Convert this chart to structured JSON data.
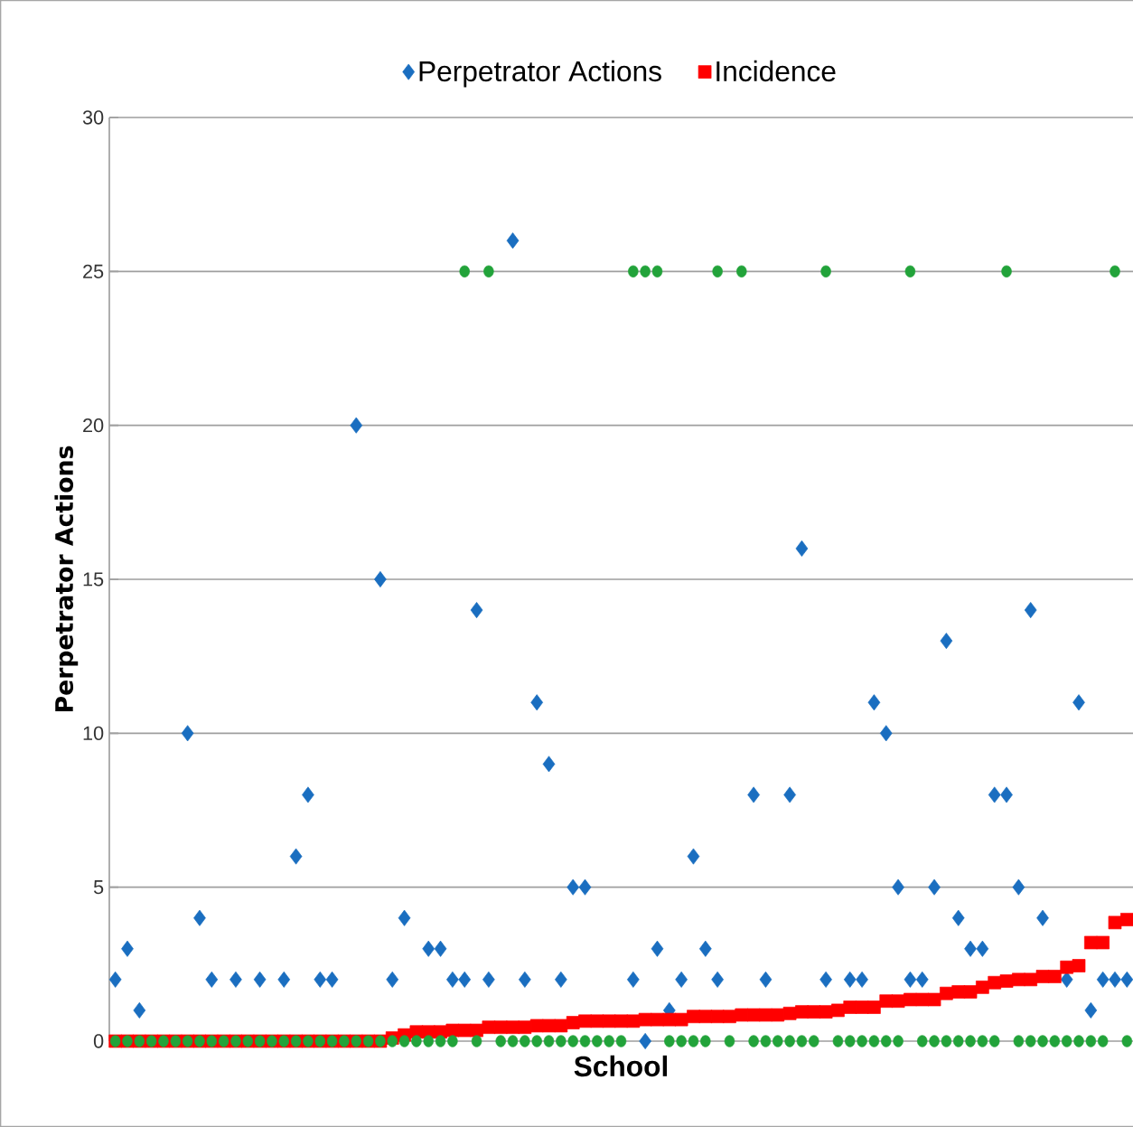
{
  "chart_data": {
    "type": "scatter",
    "xlabel": "School",
    "ylabel": "Perpetrator Actions",
    "categories": [
      null,
      null,
      null,
      null,
      null,
      null,
      null,
      null,
      null,
      null,
      null,
      null,
      null,
      null,
      null,
      null,
      null,
      null,
      null,
      null,
      null,
      null,
      null,
      null,
      null,
      null,
      null,
      null,
      null,
      null,
      null,
      null,
      null,
      null,
      null,
      null,
      null,
      null,
      null,
      null,
      null,
      null,
      null,
      null,
      null,
      null,
      null,
      null,
      null,
      null,
      null,
      null,
      null,
      null,
      null,
      null,
      null,
      null,
      null,
      null,
      null,
      null,
      null,
      null,
      null,
      null,
      null,
      null,
      null,
      null,
      null,
      null,
      null,
      null,
      null,
      null,
      null,
      null,
      null,
      null,
      null,
      null,
      null,
      null,
      null
    ],
    "ylim": [
      0,
      30
    ],
    "yticks": [
      0,
      5,
      10,
      15,
      20,
      25,
      30
    ],
    "grid": "y",
    "legend": "top",
    "series": [
      {
        "name": "Perpetrator Actions",
        "color": "#1a6ec0",
        "marker": "diamond",
        "values": [
          2,
          3,
          1,
          null,
          null,
          null,
          10,
          4,
          2,
          null,
          2,
          null,
          2,
          null,
          2,
          6,
          8,
          2,
          2,
          null,
          20,
          null,
          15,
          2,
          4,
          null,
          3,
          3,
          2,
          2,
          14,
          2,
          null,
          26,
          2,
          11,
          9,
          2,
          5,
          5,
          null,
          null,
          null,
          2,
          0,
          3,
          1,
          2,
          6,
          3,
          2,
          null,
          null,
          8,
          2,
          null,
          8,
          16,
          null,
          2,
          null,
          2,
          2,
          11,
          10,
          5,
          2,
          2,
          5,
          13,
          4,
          3,
          3,
          8,
          8,
          5,
          14,
          4,
          null,
          2,
          11,
          1,
          2,
          2,
          2
        ]
      },
      {
        "name": "Incidence",
        "color": "#ff0000",
        "marker": "square",
        "values": [
          0,
          0,
          0,
          0,
          0,
          0,
          0,
          0,
          0,
          0,
          0,
          0,
          0,
          0,
          0,
          0,
          0,
          0,
          0,
          0,
          0,
          0,
          0,
          0.1,
          0.2,
          0.3,
          0.3,
          0.3,
          0.35,
          0.35,
          0.35,
          0.45,
          0.45,
          0.45,
          0.45,
          0.5,
          0.5,
          0.5,
          0.6,
          0.65,
          0.65,
          0.65,
          0.65,
          0.65,
          0.7,
          0.7,
          0.7,
          0.7,
          0.8,
          0.8,
          0.8,
          0.8,
          0.85,
          0.85,
          0.85,
          0.85,
          0.9,
          0.95,
          0.95,
          0.95,
          1,
          1.1,
          1.1,
          1.1,
          1.3,
          1.3,
          1.35,
          1.35,
          1.35,
          1.55,
          1.6,
          1.6,
          1.75,
          1.9,
          1.95,
          2,
          2,
          2.1,
          2.1,
          2.4,
          2.45,
          3.2,
          3.2,
          3.85,
          3.95
        ]
      },
      {
        "color": "#22a33a",
        "marker": "circle",
        "values": [
          0,
          0,
          0,
          0,
          0,
          0,
          0,
          0,
          0,
          0,
          0,
          0,
          0,
          0,
          0,
          0,
          0,
          0,
          0,
          0,
          0,
          0,
          0,
          0,
          0,
          0,
          0,
          0,
          0,
          25,
          0,
          25,
          0,
          0,
          0,
          0,
          0,
          0,
          0,
          0,
          0,
          0,
          0,
          25,
          25,
          25,
          0,
          0,
          0,
          0,
          25,
          0,
          25,
          0,
          0,
          0,
          0,
          0,
          0,
          25,
          0,
          0,
          0,
          0,
          0,
          0,
          25,
          0,
          0,
          0,
          0,
          0,
          0,
          0,
          25,
          0,
          0,
          0,
          0,
          0,
          0,
          0,
          0,
          25,
          0
        ]
      }
    ]
  }
}
